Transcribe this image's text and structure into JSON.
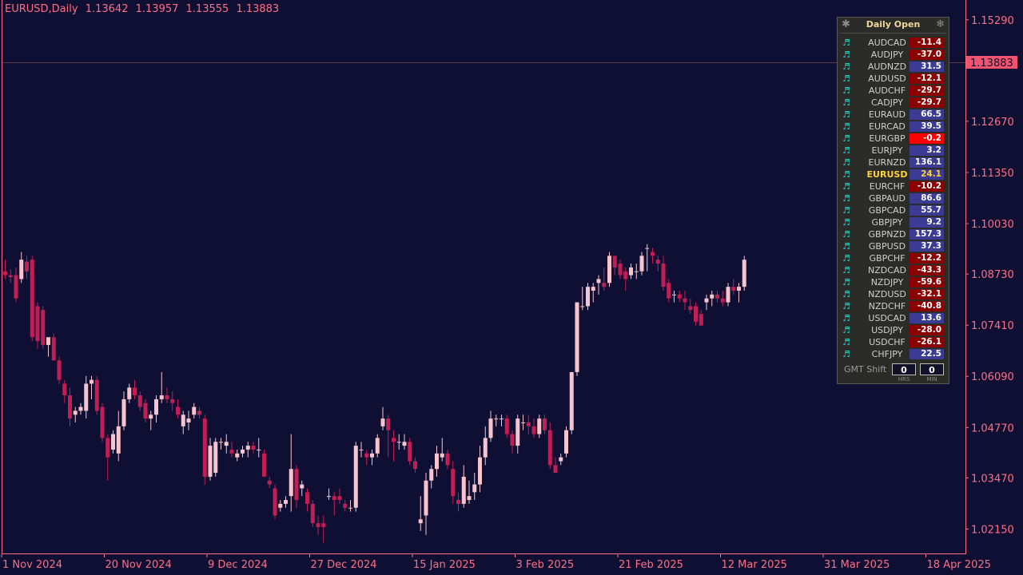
{
  "header": {
    "symbol_tf": "EURUSD,Daily",
    "ohlc": [
      "1.13642",
      "1.13957",
      "1.13555",
      "1.13883"
    ]
  },
  "price_axis": {
    "labels": [
      "1.15290",
      "1.12670",
      "1.11350",
      "1.10030",
      "1.08730",
      "1.07410",
      "1.06090",
      "1.04770",
      "1.03470",
      "1.02150"
    ],
    "current_price": "1.13883",
    "current_price_bg": "#f2536f"
  },
  "time_axis": {
    "labels": [
      "1 Nov 2024",
      "20 Nov 2024",
      "9 Dec 2024",
      "27 Dec 2024",
      "15 Jan 2025",
      "3 Feb 2025",
      "21 Feb 2025",
      "12 Mar 2025",
      "31 Mar 2025",
      "18 Apr 2025"
    ]
  },
  "colors": {
    "background": "#0e0f33",
    "bull": "#f7c4cd",
    "bear": "#c21e56",
    "axis": "#ff6f86",
    "positive_cell": "#3b3b93",
    "negative_cell": "#8b0000",
    "highlight_negative_cell": "#ff0000"
  },
  "panel": {
    "title": "Daily Open",
    "left_icon": "asterisk-icon",
    "right_icon": "snowflake-icon",
    "row_icon": "music-note-icon",
    "rows": [
      {
        "symbol": "AUDCAD",
        "value": "-11.4"
      },
      {
        "symbol": "AUDJPY",
        "value": "-37.0"
      },
      {
        "symbol": "AUDNZD",
        "value": "31.5"
      },
      {
        "symbol": "AUDUSD",
        "value": "-12.1"
      },
      {
        "symbol": "AUDCHF",
        "value": "-29.7"
      },
      {
        "symbol": "CADJPY",
        "value": "-29.7"
      },
      {
        "symbol": "EURAUD",
        "value": "66.5"
      },
      {
        "symbol": "EURCAD",
        "value": "39.5"
      },
      {
        "symbol": "EURGBP",
        "value": "-0.2",
        "highlight": true
      },
      {
        "symbol": "EURJPY",
        "value": "3.2"
      },
      {
        "symbol": "EURNZD",
        "value": "136.1"
      },
      {
        "symbol": "EURUSD",
        "value": "24.1",
        "active": true
      },
      {
        "symbol": "EURCHF",
        "value": "-10.2"
      },
      {
        "symbol": "GBPAUD",
        "value": "86.6"
      },
      {
        "symbol": "GBPCAD",
        "value": "55.7"
      },
      {
        "symbol": "GBPJPY",
        "value": "9.2"
      },
      {
        "symbol": "GBPNZD",
        "value": "157.3"
      },
      {
        "symbol": "GBPUSD",
        "value": "37.3"
      },
      {
        "symbol": "GBPCHF",
        "value": "-12.2"
      },
      {
        "symbol": "NZDCAD",
        "value": "-43.3"
      },
      {
        "symbol": "NZDJPY",
        "value": "-59.6"
      },
      {
        "symbol": "NZDUSD",
        "value": "-32.1"
      },
      {
        "symbol": "NZDCHF",
        "value": "-40.8"
      },
      {
        "symbol": "USDCAD",
        "value": "13.6"
      },
      {
        "symbol": "USDJPY",
        "value": "-28.0"
      },
      {
        "symbol": "USDCHF",
        "value": "-26.1"
      },
      {
        "symbol": "CHFJPY",
        "value": "22.5"
      }
    ],
    "gmt": {
      "label": "GMT Shift",
      "hours": "0",
      "minutes": "0",
      "hours_caption": "HRS",
      "minutes_caption": "MIN"
    }
  },
  "chart_data": {
    "type": "candlestick",
    "symbol": "EURUSD",
    "timeframe": "Daily",
    "y_range": [
      1.015,
      1.158
    ],
    "candles": [
      [
        1.088,
        1.091,
        1.086,
        1.087
      ],
      [
        1.087,
        1.0885,
        1.085,
        1.0865
      ],
      [
        1.087,
        1.089,
        1.08,
        1.081
      ],
      [
        1.086,
        1.093,
        1.085,
        1.091
      ],
      [
        1.0905,
        1.092,
        1.086,
        1.088
      ],
      [
        1.091,
        1.092,
        1.07,
        1.071
      ],
      [
        1.079,
        1.08,
        1.068,
        1.07
      ],
      [
        1.078,
        1.079,
        1.068,
        1.069
      ],
      [
        1.069,
        1.07,
        1.066,
        1.071
      ],
      [
        1.071,
        1.072,
        1.065,
        1.065
      ],
      [
        1.065,
        1.066,
        1.059,
        1.06
      ],
      [
        1.059,
        1.06,
        1.054,
        1.056
      ],
      [
        1.056,
        1.058,
        1.048,
        1.05
      ],
      [
        1.051,
        1.053,
        1.049,
        1.052
      ],
      [
        1.052,
        1.054,
        1.051,
        1.053
      ],
      [
        1.052,
        1.061,
        1.05,
        1.059
      ],
      [
        1.059,
        1.061,
        1.055,
        1.06
      ],
      [
        1.06,
        1.061,
        1.051,
        1.052
      ],
      [
        1.053,
        1.054,
        1.044,
        1.045
      ],
      [
        1.045,
        1.046,
        1.034,
        1.04
      ],
      [
        1.042,
        1.047,
        1.041,
        1.046
      ],
      [
        1.041,
        1.052,
        1.039,
        1.048
      ],
      [
        1.048,
        1.057,
        1.047,
        1.055
      ],
      [
        1.055,
        1.059,
        1.054,
        1.058
      ],
      [
        1.058,
        1.06,
        1.055,
        1.056
      ],
      [
        1.056,
        1.057,
        1.052,
        1.053
      ],
      [
        1.054,
        1.055,
        1.049,
        1.05
      ],
      [
        1.05,
        1.052,
        1.047,
        1.051
      ],
      [
        1.051,
        1.056,
        1.049,
        1.055
      ],
      [
        1.055,
        1.062,
        1.054,
        1.056
      ],
      [
        1.056,
        1.058,
        1.054,
        1.055
      ],
      [
        1.055,
        1.057,
        1.052,
        1.054
      ],
      [
        1.053,
        1.055,
        1.05,
        1.051
      ],
      [
        1.048,
        1.052,
        1.046,
        1.051
      ],
      [
        1.049,
        1.052,
        1.047,
        1.05
      ],
      [
        1.051,
        1.054,
        1.05,
        1.053
      ],
      [
        1.052,
        1.053,
        1.05,
        1.051
      ],
      [
        1.05,
        1.051,
        1.033,
        1.035
      ],
      [
        1.035,
        1.045,
        1.034,
        1.043
      ],
      [
        1.036,
        1.045,
        1.035,
        1.044
      ],
      [
        1.044,
        1.045,
        1.042,
        1.044
      ],
      [
        1.043,
        1.046,
        1.041,
        1.044
      ],
      [
        1.042,
        1.044,
        1.04,
        1.041
      ],
      [
        1.04,
        1.042,
        1.039,
        1.041
      ],
      [
        1.041,
        1.043,
        1.04,
        1.042
      ],
      [
        1.042,
        1.044,
        1.04,
        1.043
      ],
      [
        1.043,
        1.044,
        1.041,
        1.042
      ],
      [
        1.042,
        1.045,
        1.04,
        1.042
      ],
      [
        1.041,
        1.042,
        1.035,
        1.035
      ],
      [
        1.034,
        1.035,
        1.032,
        1.033
      ],
      [
        1.032,
        1.033,
        1.024,
        1.025
      ],
      [
        1.027,
        1.029,
        1.026,
        1.028
      ],
      [
        1.028,
        1.03,
        1.027,
        1.029
      ],
      [
        1.03,
        1.046,
        1.026,
        1.037
      ],
      [
        1.037,
        1.038,
        1.027,
        1.029
      ],
      [
        1.032,
        1.034,
        1.03,
        1.033
      ],
      [
        1.031,
        1.032,
        1.026,
        1.028
      ],
      [
        1.028,
        1.029,
        1.022,
        1.023
      ],
      [
        1.023,
        1.025,
        1.02,
        1.022
      ],
      [
        1.023,
        1.025,
        1.018,
        1.022
      ],
      [
        1.03,
        1.032,
        1.029,
        1.03
      ],
      [
        1.03,
        1.031,
        1.025,
        1.029
      ],
      [
        1.03,
        1.032,
        1.028,
        1.029
      ],
      [
        1.028,
        1.029,
        1.026,
        1.027
      ],
      [
        1.027,
        1.029,
        1.026,
        1.027
      ],
      [
        1.027,
        1.044,
        1.026,
        1.043
      ],
      [
        1.042,
        1.044,
        1.04,
        1.042
      ],
      [
        1.041,
        1.042,
        1.038,
        1.04
      ],
      [
        1.04,
        1.042,
        1.038,
        1.041
      ],
      [
        1.041,
        1.046,
        1.04,
        1.045
      ],
      [
        1.048,
        1.053,
        1.047,
        1.05
      ],
      [
        1.05,
        1.051,
        1.04,
        1.047
      ],
      [
        1.045,
        1.047,
        1.039,
        1.044
      ],
      [
        1.044,
        1.046,
        1.042,
        1.044
      ],
      [
        1.043,
        1.046,
        1.042,
        1.044
      ],
      [
        1.044,
        1.045,
        1.038,
        1.039
      ],
      [
        1.039,
        1.04,
        1.036,
        1.037
      ],
      [
        1.023,
        1.03,
        1.021,
        1.024
      ],
      [
        1.025,
        1.036,
        1.02,
        1.034
      ],
      [
        1.034,
        1.038,
        1.032,
        1.037
      ],
      [
        1.037,
        1.043,
        1.035,
        1.041
      ],
      [
        1.04,
        1.045,
        1.039,
        1.041
      ],
      [
        1.041,
        1.042,
        1.037,
        1.038
      ],
      [
        1.037,
        1.039,
        1.028,
        1.03
      ],
      [
        1.029,
        1.031,
        1.026,
        1.028
      ],
      [
        1.028,
        1.038,
        1.027,
        1.035
      ],
      [
        1.029,
        1.034,
        1.028,
        1.03
      ],
      [
        1.031,
        1.036,
        1.029,
        1.033
      ],
      [
        1.033,
        1.043,
        1.031,
        1.04
      ],
      [
        1.04,
        1.048,
        1.038,
        1.045
      ],
      [
        1.045,
        1.052,
        1.044,
        1.05
      ],
      [
        1.05,
        1.051,
        1.048,
        1.05
      ],
      [
        1.05,
        1.051,
        1.048,
        1.05
      ],
      [
        1.05,
        1.051,
        1.045,
        1.046
      ],
      [
        1.046,
        1.047,
        1.041,
        1.043
      ],
      [
        1.043,
        1.051,
        1.041,
        1.05
      ],
      [
        1.049,
        1.051,
        1.047,
        1.049
      ],
      [
        1.049,
        1.051,
        1.046,
        1.048
      ],
      [
        1.048,
        1.05,
        1.045,
        1.046
      ],
      [
        1.046,
        1.051,
        1.045,
        1.05
      ],
      [
        1.05,
        1.051,
        1.046,
        1.047
      ],
      [
        1.047,
        1.049,
        1.037,
        1.038
      ],
      [
        1.038,
        1.04,
        1.036,
        1.036
      ],
      [
        1.039,
        1.041,
        1.038,
        1.04
      ],
      [
        1.041,
        1.048,
        1.04,
        1.047
      ],
      [
        1.047,
        1.062,
        1.046,
        1.062
      ],
      [
        1.062,
        1.08,
        1.061,
        1.08
      ],
      [
        1.079,
        1.084,
        1.078,
        1.079
      ],
      [
        1.079,
        1.085,
        1.078,
        1.084
      ],
      [
        1.083,
        1.085,
        1.08,
        1.084
      ],
      [
        1.085,
        1.087,
        1.082,
        1.086
      ],
      [
        1.085,
        1.089,
        1.083,
        1.084
      ],
      [
        1.085,
        1.093,
        1.084,
        1.092
      ],
      [
        1.092,
        1.092,
        1.087,
        1.089
      ],
      [
        1.09,
        1.091,
        1.086,
        1.087
      ],
      [
        1.088,
        1.089,
        1.083,
        1.086
      ],
      [
        1.087,
        1.09,
        1.086,
        1.089
      ],
      [
        1.088,
        1.09,
        1.086,
        1.088
      ],
      [
        1.088,
        1.093,
        1.087,
        1.092
      ],
      [
        1.094,
        1.095,
        1.088,
        1.094
      ],
      [
        1.093,
        1.094,
        1.09,
        1.092
      ],
      [
        1.091,
        1.092,
        1.088,
        1.09
      ],
      [
        1.09,
        1.092,
        1.083,
        1.084
      ],
      [
        1.085,
        1.086,
        1.08,
        1.081
      ],
      [
        1.082,
        1.083,
        1.08,
        1.082
      ],
      [
        1.082,
        1.083,
        1.08,
        1.081
      ],
      [
        1.081,
        1.083,
        1.078,
        1.08
      ],
      [
        1.079,
        1.081,
        1.077,
        1.078
      ],
      [
        1.079,
        1.08,
        1.074,
        1.075
      ],
      [
        1.077,
        1.078,
        1.074,
        1.074
      ],
      [
        1.08,
        1.082,
        1.078,
        1.081
      ],
      [
        1.081,
        1.083,
        1.079,
        1.082
      ],
      [
        1.082,
        1.083,
        1.08,
        1.081
      ],
      [
        1.081,
        1.083,
        1.079,
        1.08
      ],
      [
        1.08,
        1.085,
        1.079,
        1.084
      ],
      [
        1.084,
        1.086,
        1.082,
        1.083
      ],
      [
        1.083,
        1.085,
        1.08,
        1.084
      ],
      [
        1.084,
        1.092,
        1.083,
        1.091
      ]
    ]
  }
}
